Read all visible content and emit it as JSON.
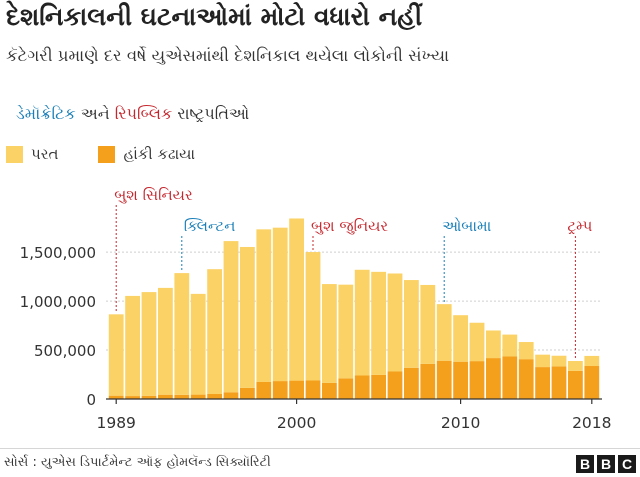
{
  "header": {
    "title": "દેશનિકાલની ઘટનાઓમાં મોટો વધારો નહીં",
    "subtitle": "કૅટેગરી પ્રમાણે દર વર્ષે યુએસમાંથી દેશનિકાલ થયેલા લોકોની સંખ્યા"
  },
  "parties": {
    "democratic": "ડેમૉક્રેટિક",
    "and": "અને",
    "republican": "રિપબ્લિક",
    "presidents": "રાષ્ટ્રપતિઓ",
    "dem_color": "#1a7fb8",
    "rep_color": "#c5272e"
  },
  "legend": {
    "returns": "પરત",
    "removals": "હાંકી કઢાયા",
    "returns_color": "#fbd266",
    "removals_color": "#f5a01d"
  },
  "footer": {
    "source": "સોર્સ : યુએસ ડિપાર્ટમેન્ટ ઑફ હોમલૅન્ડ સિક્યૉરિટી",
    "logo": [
      "B",
      "B",
      "C"
    ]
  },
  "chart_data": {
    "type": "bar",
    "stacked": true,
    "x": [
      1989,
      1990,
      1991,
      1992,
      1993,
      1994,
      1995,
      1996,
      1997,
      1998,
      1999,
      2000,
      2001,
      2002,
      2003,
      2004,
      2005,
      2006,
      2007,
      2008,
      2009,
      2010,
      2011,
      2012,
      2013,
      2014,
      2015,
      2016,
      2017,
      2018
    ],
    "series": [
      {
        "name": "હાંકી કઢાયા",
        "color": "#f5a01d",
        "values": [
          34000,
          30000,
          33000,
          44000,
          43000,
          45000,
          51000,
          69000,
          114000,
          174000,
          183000,
          188000,
          189000,
          165000,
          211000,
          240000,
          246000,
          281000,
          319000,
          359000,
          391000,
          381000,
          387000,
          418000,
          434000,
          407000,
          326000,
          333000,
          287000,
          337000
        ]
      },
      {
        "name": "પરત",
        "color": "#fbd266",
        "values": [
          831000,
          1023000,
          1059000,
          1091000,
          1243000,
          1029000,
          1275000,
          1544000,
          1439000,
          1559000,
          1567000,
          1656000,
          1312000,
          1009000,
          957000,
          1080000,
          1053000,
          1001000,
          896000,
          806000,
          578000,
          475000,
          392000,
          282000,
          224000,
          175000,
          127000,
          109000,
          101000,
          103000
        ]
      }
    ],
    "xticks": [
      1989,
      2000,
      2010,
      2018
    ],
    "yticks": [
      0,
      500000,
      1000000,
      1500000
    ],
    "ytick_labels": [
      "0",
      "500,000",
      "1,000,000",
      "1,500,000"
    ],
    "ylim": [
      0,
      1900000
    ],
    "annotations": [
      {
        "label": "બુશ સિનિયર",
        "year": 1989,
        "party": "rep"
      },
      {
        "label": "ક્લિન્ટન",
        "year": 1993,
        "party": "dem"
      },
      {
        "label": "બુશ જુનિયર",
        "year": 2001,
        "party": "rep"
      },
      {
        "label": "ઓબામા",
        "year": 2009,
        "party": "dem"
      },
      {
        "label": "ટ્રમ્પ",
        "year": 2017,
        "party": "rep"
      }
    ],
    "grid": true
  }
}
